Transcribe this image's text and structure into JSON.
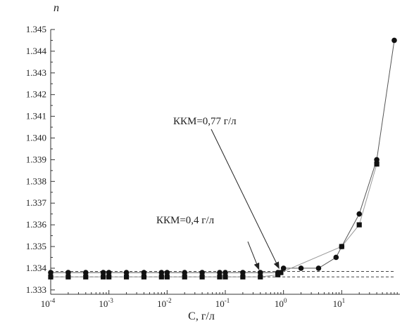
{
  "chart_data": {
    "type": "scatter",
    "title": "",
    "xlabel": "C, г/л",
    "ylabel": "n",
    "xscale": "log",
    "xlim": [
      0.0001,
      100
    ],
    "ylim": [
      1.3328,
      1.345
    ],
    "grid": false,
    "x_tick_labels": [
      {
        "base": "10",
        "exp": "-4"
      },
      {
        "base": "10",
        "exp": "-3"
      },
      {
        "base": "10",
        "exp": "-2"
      },
      {
        "base": "10",
        "exp": "-1"
      },
      {
        "base": "10",
        "exp": "0"
      },
      {
        "base": "10",
        "exp": "1"
      }
    ],
    "y_tick_labels": [
      "1.333",
      "1.334",
      "1.335",
      "1.336",
      "1.337",
      "1.338",
      "1.339",
      "1.340",
      "1.341",
      "1.342",
      "1.343",
      "1.344",
      "1.345"
    ],
    "series": [
      {
        "marker": "circle",
        "color": "#111111",
        "x": [
          0.0001,
          0.0002,
          0.0004,
          0.0008,
          0.001,
          0.002,
          0.004,
          0.008,
          0.01,
          0.02,
          0.04,
          0.08,
          0.1,
          0.2,
          0.4,
          0.8,
          1,
          2,
          4,
          8,
          10,
          20,
          40,
          80
        ],
        "y": [
          1.3338,
          1.3338,
          1.3338,
          1.3338,
          1.3338,
          1.3338,
          1.3338,
          1.3338,
          1.3338,
          1.3338,
          1.3338,
          1.3338,
          1.3338,
          1.3338,
          1.3338,
          1.3338,
          1.334,
          1.334,
          1.334,
          1.3345,
          1.335,
          1.3365,
          1.339,
          1.3445
        ]
      },
      {
        "marker": "square",
        "color": "#111111",
        "x": [
          0.0001,
          0.0002,
          0.0004,
          0.0008,
          0.001,
          0.002,
          0.004,
          0.008,
          0.01,
          0.02,
          0.04,
          0.08,
          0.1,
          0.2,
          0.4,
          0.8,
          0.9,
          10,
          20,
          40
        ],
        "y": [
          1.3336,
          1.3336,
          1.3336,
          1.3336,
          1.3336,
          1.3336,
          1.3336,
          1.3336,
          1.3336,
          1.3336,
          1.3336,
          1.3336,
          1.3336,
          1.3336,
          1.3336,
          1.3337,
          1.3338,
          1.335,
          1.336,
          1.3388
        ]
      }
    ],
    "reference_lines": [
      {
        "style": "dashed",
        "y": 1.33385,
        "x_from": 0.0001,
        "x_to": 80
      },
      {
        "style": "dashed",
        "y": 1.3336,
        "x_from": 0.0001,
        "x_to": 80
      }
    ],
    "annotations": [
      {
        "text": "ККМ=0,77 г/л",
        "points_to": {
          "x": 0.77,
          "y": 1.3338
        }
      },
      {
        "text": "ККМ=0,4 г/л",
        "points_to": {
          "x": 0.4,
          "y": 1.33375
        }
      }
    ]
  }
}
